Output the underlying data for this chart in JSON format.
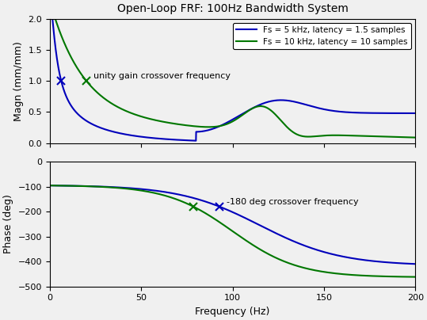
{
  "title": "Open-Loop FRF: 100Hz Bandwidth System",
  "xlabel": "Frequency (Hz)",
  "ylabel_mag": "Magn (mm/mm)",
  "ylabel_phase": "Phase (deg)",
  "legend_1": "Fs = 5 kHz, latency = 1.5 samples",
  "legend_2": "Fs = 10 kHz, latency = 10 samples",
  "color_blue": "#0000BB",
  "color_green": "#007700",
  "xlim": [
    0,
    200
  ],
  "mag_ylim": [
    0,
    2
  ],
  "phase_ylim": [
    -500,
    0
  ],
  "mag_yticks": [
    0,
    0.5,
    1.0,
    1.5,
    2.0
  ],
  "phase_yticks": [
    -500,
    -400,
    -300,
    -200,
    -100,
    0
  ],
  "xticks": [
    0,
    50,
    100,
    150,
    200
  ],
  "unity_gain_text": "unity gain crossover frequency",
  "phase_crossover_text": "-180 deg crossover frequency",
  "background": "#f0f0f0"
}
